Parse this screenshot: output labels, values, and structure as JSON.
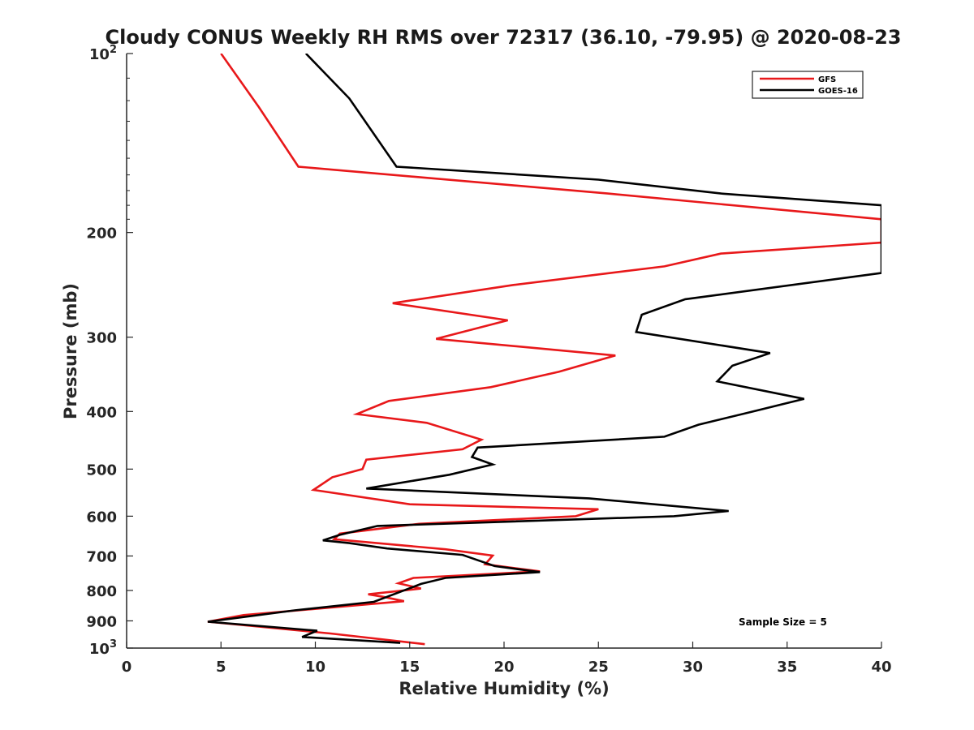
{
  "chart_data": {
    "type": "line",
    "title": "Cloudy CONUS Weekly RH RMS over 72317 (36.10, -79.95) @ 2020-08-23",
    "xlabel": "Relative Humidity (%)",
    "ylabel": "Pressure (mb)",
    "xlim": [
      0,
      40
    ],
    "ylim": [
      100,
      1000
    ],
    "y_scale": "log",
    "y_reversed": true,
    "x_ticks": [
      0,
      5,
      10,
      15,
      20,
      25,
      30,
      35,
      40
    ],
    "y_ticks": [
      {
        "value": 100,
        "base": "10",
        "exp": "2"
      },
      {
        "value": 200,
        "label": "200"
      },
      {
        "value": 300,
        "label": "300"
      },
      {
        "value": 400,
        "label": "400"
      },
      {
        "value": 500,
        "label": "500"
      },
      {
        "value": 600,
        "label": "600"
      },
      {
        "value": 700,
        "label": "700"
      },
      {
        "value": 800,
        "label": "800"
      },
      {
        "value": 900,
        "label": "900"
      },
      {
        "value": 1000,
        "base": "10",
        "exp": "3"
      }
    ],
    "grid": false,
    "legend_position": "top-right",
    "annotation": "Sample Size = 5",
    "series": [
      {
        "name": "GFS",
        "color": "#e8181a",
        "points": [
          [
            5.0,
            100
          ],
          [
            7.0,
            123
          ],
          [
            9.1,
            155
          ],
          [
            25.5,
            172
          ],
          [
            40,
            190
          ],
          [
            40,
            208
          ],
          [
            31.5,
            217
          ],
          [
            28.5,
            228
          ],
          [
            20.5,
            245
          ],
          [
            14.1,
            263
          ],
          [
            20.2,
            281
          ],
          [
            16.4,
            302
          ],
          [
            25.9,
            322
          ],
          [
            22.9,
            343
          ],
          [
            19.3,
            364
          ],
          [
            13.9,
            384
          ],
          [
            12.2,
            404
          ],
          [
            15.9,
            418
          ],
          [
            18.8,
            446
          ],
          [
            17.8,
            463
          ],
          [
            12.7,
            482
          ],
          [
            12.5,
            500
          ],
          [
            10.9,
            516
          ],
          [
            9.9,
            542
          ],
          [
            15.0,
            573
          ],
          [
            25.0,
            584
          ],
          [
            23.8,
            600
          ],
          [
            15.5,
            618
          ],
          [
            11.3,
            642
          ],
          [
            11.0,
            656
          ],
          [
            16.9,
            682
          ],
          [
            19.4,
            699
          ],
          [
            19.0,
            723
          ],
          [
            21.9,
            743
          ],
          [
            15.2,
            762
          ],
          [
            14.4,
            778
          ],
          [
            15.6,
            794
          ],
          [
            12.8,
            812
          ],
          [
            13.6,
            820
          ],
          [
            14.7,
            834
          ],
          [
            6.2,
            880
          ],
          [
            4.3,
            903
          ],
          [
            10.8,
            945
          ],
          [
            15.8,
            985
          ]
        ]
      },
      {
        "name": "GOES-16",
        "color": "#000000",
        "points": [
          [
            9.5,
            100
          ],
          [
            11.8,
            119
          ],
          [
            14.3,
            155
          ],
          [
            25.0,
            163
          ],
          [
            31.5,
            172
          ],
          [
            40,
            180
          ],
          [
            40,
            234
          ],
          [
            29.6,
            259
          ],
          [
            27.3,
            275
          ],
          [
            27.0,
            294
          ],
          [
            34.1,
            319
          ],
          [
            32.1,
            335
          ],
          [
            31.3,
            356
          ],
          [
            35.9,
            381
          ],
          [
            33.2,
            400
          ],
          [
            30.3,
            421
          ],
          [
            28.5,
            441
          ],
          [
            18.6,
            460
          ],
          [
            18.3,
            477
          ],
          [
            19.4,
            491
          ],
          [
            17.1,
            511
          ],
          [
            12.7,
            539
          ],
          [
            24.5,
            560
          ],
          [
            31.9,
            588
          ],
          [
            29.0,
            600
          ],
          [
            13.3,
            623
          ],
          [
            11.3,
            645
          ],
          [
            10.4,
            659
          ],
          [
            11.8,
            666
          ],
          [
            13.8,
            680
          ],
          [
            17.8,
            697
          ],
          [
            18.3,
            706
          ],
          [
            19.5,
            728
          ],
          [
            21.9,
            745
          ],
          [
            16.9,
            762
          ],
          [
            15.6,
            780
          ],
          [
            13.1,
            836
          ],
          [
            8.9,
            864
          ],
          [
            4.3,
            903
          ],
          [
            10.1,
            935
          ],
          [
            9.3,
            958
          ],
          [
            14.5,
            980
          ]
        ]
      }
    ]
  }
}
